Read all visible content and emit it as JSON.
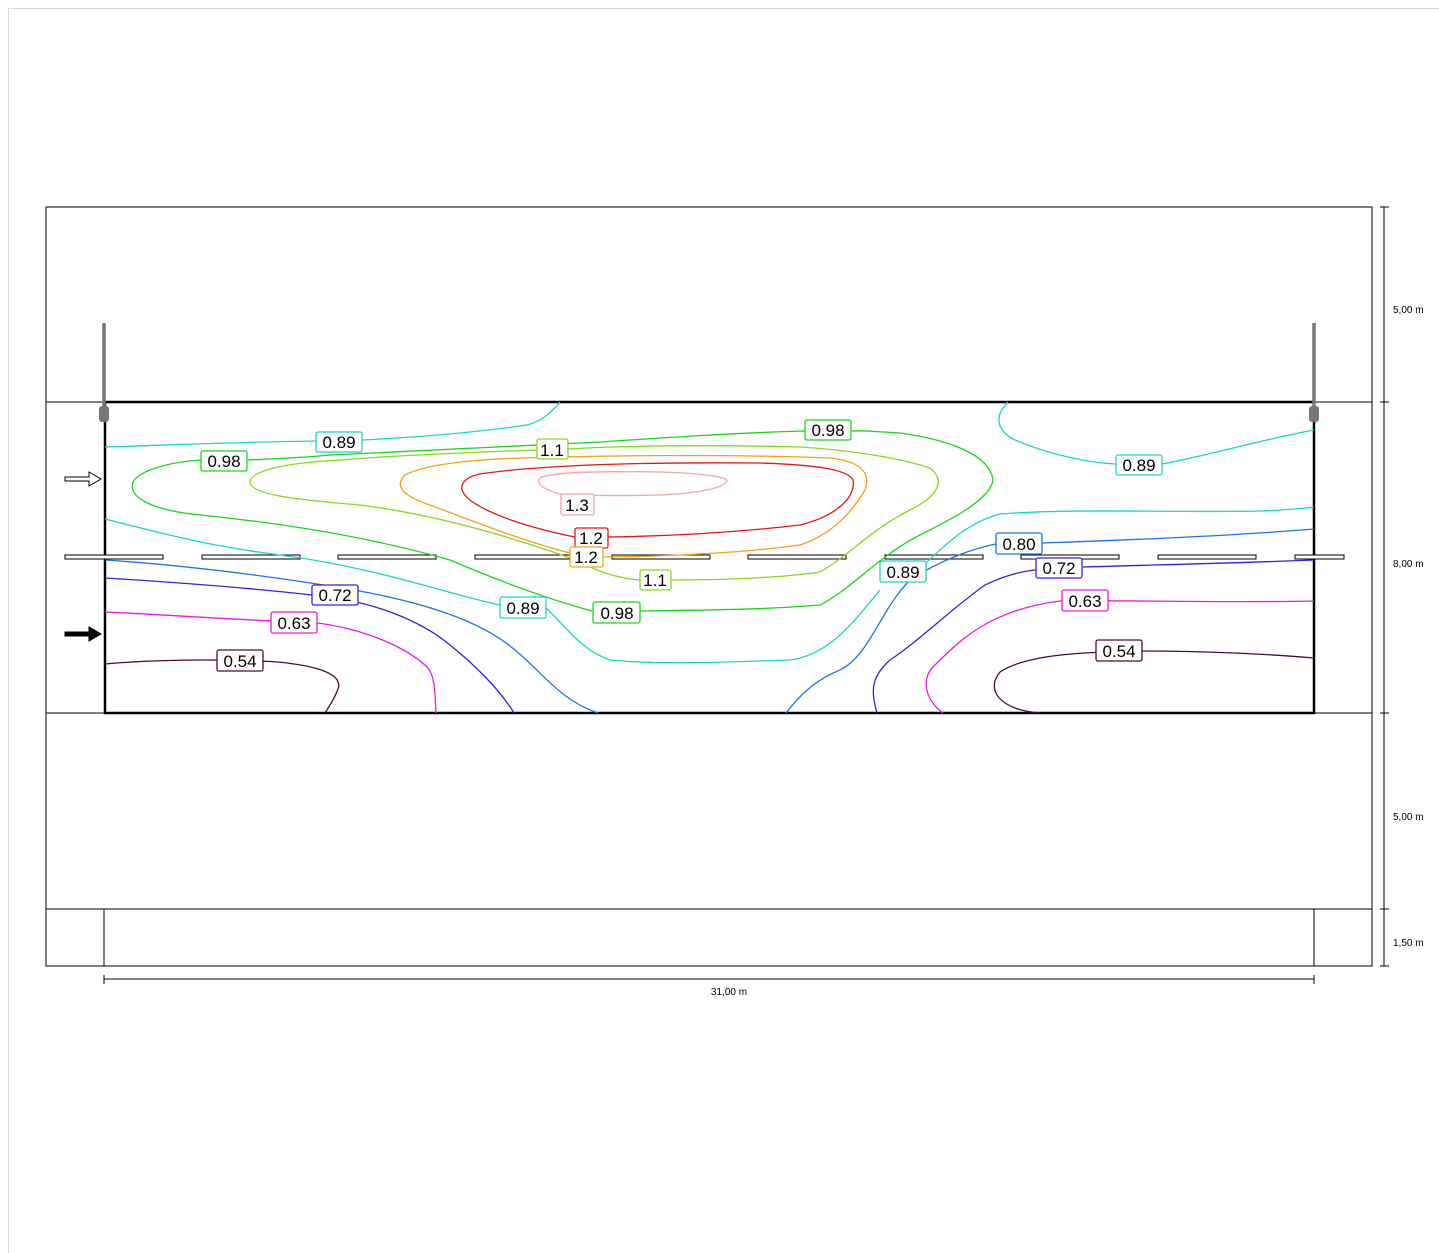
{
  "title": "",
  "dimensions": {
    "road_top_width": "5,00 m",
    "area_depth": "8,00 m",
    "road_bottom_width": "5,00 m",
    "sidewalk_width": "1,50 m",
    "total_length": "31,00 m"
  },
  "contour_labels": [
    "0.89",
    "0.98",
    "1.1",
    "0.98",
    "0.89",
    "1.3",
    "1.2",
    "1.2",
    "0.80",
    "0.72",
    "0.89",
    "1.1",
    "0.72",
    "0.63",
    "0.89",
    "0.98",
    "0.63",
    "0.54",
    "0.54"
  ],
  "colors": {
    "c054": "#4a0a40",
    "c063": "#e619e6",
    "c072": "#3a1fd6",
    "c080": "#1f74e6",
    "c089": "#19d6c8",
    "c098": "#19d619",
    "c11": "#8ad61f",
    "c12": "#f0a21a",
    "c12b": "#e01919",
    "c13": "#f5a3a3"
  }
}
